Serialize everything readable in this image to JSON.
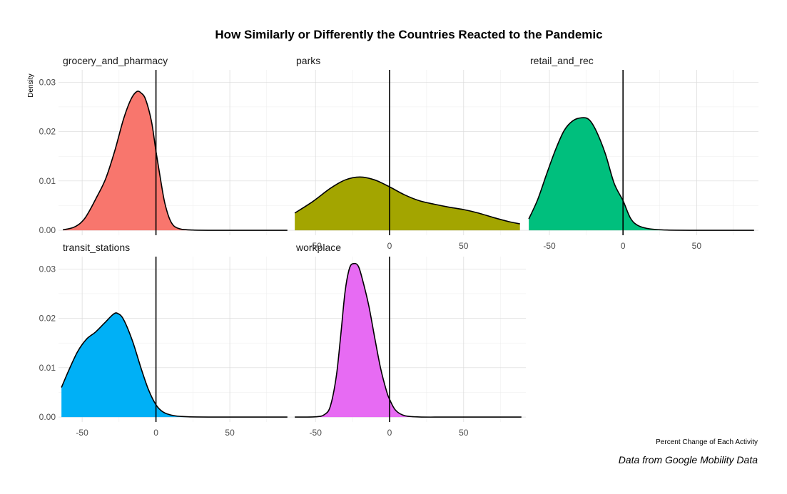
{
  "chart_data": {
    "type": "area",
    "title": "How Similarly or Differently the Countries Reacted to the Pandemic",
    "xlabel": "Percent Change of Each Activity",
    "ylabel": "Density",
    "caption": "Data from Google Mobility Data",
    "xlim": [
      -66,
      92
    ],
    "ylim": [
      -0.001,
      0.0325
    ],
    "x_ticks": [
      -50,
      0,
      50
    ],
    "y_ticks": [
      0.0,
      0.01,
      0.02,
      0.03
    ],
    "y_tick_labels": [
      "0.00",
      "0.01",
      "0.02",
      "0.03"
    ],
    "reference_line_x": 0,
    "grid": true,
    "legend": "none",
    "panels": [
      {
        "name": "grocery_and_pharmacy",
        "color": "#F8766D",
        "points": [
          [
            -63,
            0.0001
          ],
          [
            -55,
            0.0007
          ],
          [
            -48,
            0.0025
          ],
          [
            -40,
            0.0068
          ],
          [
            -34,
            0.0105
          ],
          [
            -28,
            0.016
          ],
          [
            -22,
            0.0225
          ],
          [
            -17,
            0.0265
          ],
          [
            -13,
            0.0281
          ],
          [
            -10,
            0.0278
          ],
          [
            -7,
            0.0265
          ],
          [
            -3,
            0.022
          ],
          [
            0,
            0.016
          ],
          [
            3,
            0.0105
          ],
          [
            6,
            0.0055
          ],
          [
            10,
            0.0018
          ],
          [
            15,
            0.0004
          ],
          [
            25,
            5e-05
          ],
          [
            45,
            0
          ],
          [
            89,
            0
          ]
        ]
      },
      {
        "name": "parks",
        "color": "#A3A500",
        "points": [
          [
            -64,
            0.0035
          ],
          [
            -52,
            0.0058
          ],
          [
            -40,
            0.0085
          ],
          [
            -30,
            0.0102
          ],
          [
            -20,
            0.0108
          ],
          [
            -10,
            0.0102
          ],
          [
            0,
            0.0088
          ],
          [
            10,
            0.0072
          ],
          [
            20,
            0.006
          ],
          [
            30,
            0.0053
          ],
          [
            40,
            0.0047
          ],
          [
            50,
            0.0042
          ],
          [
            60,
            0.0035
          ],
          [
            70,
            0.0026
          ],
          [
            80,
            0.0018
          ],
          [
            88,
            0.0013
          ]
        ]
      },
      {
        "name": "retail_and_rec",
        "color": "#00BF7D",
        "points": [
          [
            -64,
            0.0023
          ],
          [
            -58,
            0.0062
          ],
          [
            -52,
            0.0113
          ],
          [
            -46,
            0.0162
          ],
          [
            -40,
            0.0202
          ],
          [
            -34,
            0.0222
          ],
          [
            -28,
            0.0228
          ],
          [
            -23,
            0.0224
          ],
          [
            -18,
            0.02
          ],
          [
            -12,
            0.0155
          ],
          [
            -6,
            0.0095
          ],
          [
            0,
            0.006
          ],
          [
            5,
            0.0025
          ],
          [
            10,
            0.001
          ],
          [
            18,
            0.0003
          ],
          [
            30,
            5e-05
          ],
          [
            50,
            0
          ],
          [
            89,
            0
          ]
        ]
      },
      {
        "name": "transit_stations",
        "color": "#00B0F6",
        "points": [
          [
            -64,
            0.006
          ],
          [
            -59,
            0.0095
          ],
          [
            -53,
            0.0133
          ],
          [
            -47,
            0.0158
          ],
          [
            -41,
            0.0172
          ],
          [
            -35,
            0.019
          ],
          [
            -29,
            0.0208
          ],
          [
            -26,
            0.021
          ],
          [
            -22,
            0.0198
          ],
          [
            -16,
            0.0155
          ],
          [
            -10,
            0.0098
          ],
          [
            -5,
            0.0055
          ],
          [
            0,
            0.0025
          ],
          [
            5,
            0.001
          ],
          [
            12,
            0.0003
          ],
          [
            22,
            5e-05
          ],
          [
            40,
            0
          ],
          [
            89,
            0
          ]
        ]
      },
      {
        "name": "workplace",
        "color": "#E76BF3",
        "points": [
          [
            -64,
            0
          ],
          [
            -50,
            5e-05
          ],
          [
            -44,
            0.0005
          ],
          [
            -40,
            0.0022
          ],
          [
            -36,
            0.0082
          ],
          [
            -33,
            0.0165
          ],
          [
            -30,
            0.0255
          ],
          [
            -27,
            0.0302
          ],
          [
            -24,
            0.0311
          ],
          [
            -21,
            0.0305
          ],
          [
            -18,
            0.0275
          ],
          [
            -14,
            0.0225
          ],
          [
            -10,
            0.016
          ],
          [
            -6,
            0.0098
          ],
          [
            -2,
            0.0052
          ],
          [
            0,
            0.0036
          ],
          [
            4,
            0.0014
          ],
          [
            10,
            0.0003
          ],
          [
            20,
            2e-05
          ],
          [
            40,
            0
          ],
          [
            89,
            0
          ]
        ]
      }
    ]
  }
}
